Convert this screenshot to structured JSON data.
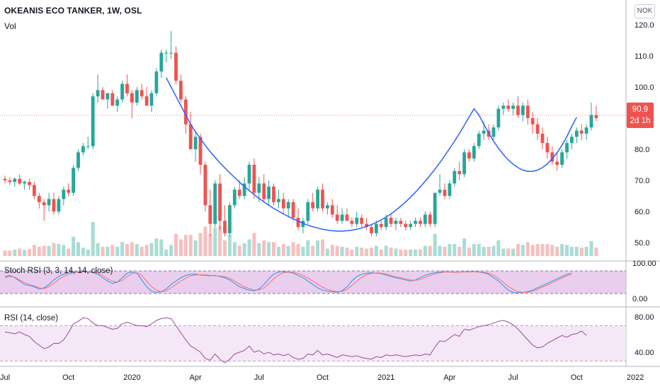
{
  "header": {
    "title": "OKEANIS ECO TANKER, 1W, OSL",
    "volume_label": "Vol",
    "currency": "NOK"
  },
  "last_price": {
    "value": "90.9",
    "countdown": "2d 1h"
  },
  "panes": {
    "stoch_rsi": {
      "title": "Stoch RSI (3, 3, 14, 14, close)",
      "ticks": [
        "100.00",
        "0.00"
      ]
    },
    "rsi": {
      "title": "RSI (14, close)",
      "ticks": [
        "80.00",
        "40.00"
      ]
    }
  },
  "colors": {
    "up": "#26a69a",
    "down": "#ef5350",
    "vol_up": "#a8ddd6",
    "vol_down": "#f7bfbf",
    "cup_line": "#2962ff",
    "stoch_k": "#2196f3",
    "stoch_d": "#ff6d6d",
    "band_fill": "#e1bee7",
    "rsi_line": "#9c4a9c",
    "rsi_band": "#f3e5f5"
  },
  "chart_data": {
    "type": "candlestick",
    "y_axis_ticks": [
      "120.0",
      "110.0",
      "100.0",
      "90.0",
      "80.0",
      "70.0",
      "60.0",
      "50.0"
    ],
    "ylim": [
      45,
      121
    ],
    "x_axis_ticks": [
      "Jul",
      "Oct",
      "2020",
      "Apr",
      "Jul",
      "Oct",
      "2021",
      "Apr",
      "Jul",
      "Oct",
      "2022"
    ],
    "candles_ohlc": [
      [
        70.5,
        71.5,
        69,
        70
      ],
      [
        70,
        71,
        68.5,
        69.5
      ],
      [
        69.5,
        71,
        68,
        70.5
      ],
      [
        70.5,
        72,
        68.5,
        69
      ],
      [
        69,
        70,
        67,
        69.5
      ],
      [
        69.5,
        70.5,
        67,
        68.5
      ],
      [
        68.5,
        69.5,
        64,
        65
      ],
      [
        65,
        66,
        61,
        63
      ],
      [
        63,
        64,
        57,
        62
      ],
      [
        62,
        66,
        60,
        64
      ],
      [
        64,
        66,
        59,
        60
      ],
      [
        60,
        65,
        59,
        64
      ],
      [
        64,
        68,
        62,
        67
      ],
      [
        67,
        69,
        65,
        66
      ],
      [
        66,
        75,
        65,
        74
      ],
      [
        74,
        80,
        73,
        79
      ],
      [
        79,
        82,
        78,
        81
      ],
      [
        81,
        84,
        80,
        81
      ],
      [
        81,
        98,
        80,
        97
      ],
      [
        97,
        104,
        95,
        99
      ],
      [
        99,
        100,
        96,
        96
      ],
      [
        96,
        98,
        93,
        98
      ],
      [
        98,
        99,
        94,
        94
      ],
      [
        94,
        97,
        92,
        96
      ],
      [
        96,
        102,
        95,
        101
      ],
      [
        101,
        104,
        97,
        98
      ],
      [
        98,
        99,
        90,
        95
      ],
      [
        95,
        100,
        94,
        99
      ],
      [
        99,
        101,
        96,
        97
      ],
      [
        97,
        100,
        94,
        94
      ],
      [
        94,
        99,
        92,
        98
      ],
      [
        98,
        106,
        97,
        105
      ],
      [
        105,
        112,
        103,
        111
      ],
      [
        111,
        112,
        108,
        111
      ],
      [
        111,
        118,
        109,
        111
      ],
      [
        111,
        113,
        101,
        102
      ],
      [
        102,
        104,
        95,
        96
      ],
      [
        96,
        97,
        85,
        88
      ],
      [
        88,
        92,
        80,
        80
      ],
      [
        80,
        86,
        76,
        84
      ],
      [
        84,
        85,
        72,
        75
      ],
      [
        75,
        76,
        60,
        62
      ],
      [
        62,
        67,
        52,
        56
      ],
      [
        56,
        70,
        55,
        69
      ],
      [
        69,
        72,
        54,
        57
      ],
      [
        57,
        62,
        52,
        53
      ],
      [
        53,
        63,
        52,
        62
      ],
      [
        62,
        68,
        61,
        67
      ],
      [
        67,
        70,
        64,
        65
      ],
      [
        65,
        71,
        64,
        69
      ],
      [
        69,
        76,
        67,
        75
      ],
      [
        75,
        77,
        64,
        66
      ],
      [
        66,
        71,
        63,
        69
      ],
      [
        69,
        72,
        63,
        64
      ],
      [
        64,
        70,
        62,
        68
      ],
      [
        68,
        69,
        62,
        63
      ],
      [
        63,
        67,
        61,
        64
      ],
      [
        64,
        66,
        59,
        61
      ],
      [
        61,
        64,
        58,
        63
      ],
      [
        63,
        64,
        57,
        58
      ],
      [
        58,
        61,
        54,
        55
      ],
      [
        55,
        58,
        53,
        57
      ],
      [
        57,
        64,
        56,
        63
      ],
      [
        63,
        66,
        60,
        61
      ],
      [
        61,
        68,
        60,
        67
      ],
      [
        67,
        69,
        60,
        61
      ],
      [
        61,
        63,
        59,
        62
      ],
      [
        62,
        64,
        58,
        59
      ],
      [
        59,
        62,
        56,
        57
      ],
      [
        57,
        61,
        56,
        59
      ],
      [
        59,
        61,
        57,
        57
      ],
      [
        57,
        58,
        55,
        56
      ],
      [
        56,
        60,
        55,
        58
      ],
      [
        58,
        59,
        55,
        56
      ],
      [
        56,
        58,
        54,
        55
      ],
      [
        55,
        56,
        52,
        53
      ],
      [
        53,
        57,
        52,
        56
      ],
      [
        56,
        57,
        54,
        55
      ],
      [
        55,
        59,
        54,
        58
      ],
      [
        58,
        59,
        55,
        56
      ],
      [
        56,
        58,
        54,
        57
      ],
      [
        57,
        58,
        55,
        56
      ],
      [
        56,
        57,
        54,
        55
      ],
      [
        55,
        57,
        54,
        56
      ],
      [
        56,
        58,
        55,
        57
      ],
      [
        57,
        58,
        55,
        56
      ],
      [
        56,
        60,
        55,
        59
      ],
      [
        59,
        60,
        55,
        56
      ],
      [
        56,
        66,
        55,
        66
      ],
      [
        66,
        72,
        65,
        67
      ],
      [
        67,
        69,
        64,
        65
      ],
      [
        65,
        70,
        64,
        69
      ],
      [
        69,
        74,
        68,
        73
      ],
      [
        73,
        76,
        70,
        72
      ],
      [
        72,
        80,
        71,
        79
      ],
      [
        79,
        80,
        76,
        77
      ],
      [
        77,
        82,
        76,
        81
      ],
      [
        81,
        86,
        80,
        85
      ],
      [
        85,
        89,
        83,
        86
      ],
      [
        86,
        88,
        83,
        84
      ],
      [
        84,
        88,
        83,
        87
      ],
      [
        87,
        94,
        86,
        93
      ],
      [
        93,
        95,
        91,
        94
      ],
      [
        94,
        96,
        92,
        93
      ],
      [
        93,
        95,
        91,
        94
      ],
      [
        94,
        97,
        90,
        91
      ],
      [
        91,
        95,
        89,
        94
      ],
      [
        94,
        96,
        88,
        90
      ],
      [
        90,
        92,
        85,
        88
      ],
      [
        88,
        90,
        83,
        85
      ],
      [
        85,
        87,
        80,
        82
      ],
      [
        82,
        84,
        77,
        79
      ],
      [
        79,
        81,
        75,
        76
      ],
      [
        76,
        79,
        73,
        75
      ],
      [
        75,
        80,
        74,
        79
      ],
      [
        79,
        83,
        77,
        82
      ],
      [
        82,
        85,
        80,
        84
      ],
      [
        84,
        87,
        82,
        86
      ],
      [
        86,
        88,
        83,
        85
      ],
      [
        85,
        88,
        83,
        87
      ],
      [
        87,
        95,
        86,
        91
      ],
      [
        91,
        94,
        89,
        90
      ]
    ],
    "cup_handle_curve": [
      [
        33,
        103
      ],
      [
        34,
        100
      ],
      [
        35,
        97
      ],
      [
        36,
        94
      ],
      [
        37,
        91
      ],
      [
        38,
        88
      ],
      [
        39,
        85.6
      ],
      [
        40,
        83.4
      ],
      [
        41,
        81.2
      ],
      [
        42,
        79.2
      ],
      [
        43,
        77.4
      ],
      [
        44,
        75.6
      ],
      [
        45,
        74
      ],
      [
        46,
        72.4
      ],
      [
        47,
        70.9
      ],
      [
        48,
        69.4
      ],
      [
        49,
        68
      ],
      [
        50,
        66.7
      ],
      [
        51,
        65.4
      ],
      [
        52,
        64.2
      ],
      [
        53,
        63.1
      ],
      [
        54,
        62
      ],
      [
        55,
        61
      ],
      [
        56,
        60.1
      ],
      [
        57,
        59.2
      ],
      [
        58,
        58.4
      ],
      [
        59,
        57.6
      ],
      [
        60,
        56.9
      ],
      [
        61,
        56.2
      ],
      [
        62,
        55.6
      ],
      [
        63,
        55.1
      ],
      [
        64,
        54.7
      ],
      [
        65,
        54.3
      ],
      [
        66,
        54
      ],
      [
        67,
        53.8
      ],
      [
        68,
        53.7
      ],
      [
        69,
        53.7
      ],
      [
        70,
        53.8
      ],
      [
        71,
        54
      ],
      [
        72,
        54.3
      ],
      [
        73,
        54.7
      ],
      [
        74,
        55.2
      ],
      [
        75,
        55.8
      ],
      [
        76,
        56.5
      ],
      [
        77,
        57.3
      ],
      [
        78,
        58.2
      ],
      [
        79,
        59.2
      ],
      [
        80,
        60.4
      ],
      [
        81,
        61.7
      ],
      [
        82,
        63.1
      ],
      [
        83,
        64.6
      ],
      [
        84,
        66.2
      ],
      [
        85,
        67.9
      ],
      [
        86,
        69.7
      ],
      [
        87,
        71.6
      ],
      [
        88,
        73.6
      ],
      [
        89,
        75.7
      ],
      [
        90,
        77.9
      ],
      [
        91,
        80.2
      ],
      [
        92,
        82.6
      ],
      [
        93,
        85.1
      ],
      [
        94,
        87.7
      ],
      [
        95,
        90.4
      ],
      [
        96,
        93
      ],
      [
        97,
        91
      ],
      [
        98,
        88
      ],
      [
        99,
        85.2
      ],
      [
        100,
        82.6
      ],
      [
        101,
        80.3
      ],
      [
        102,
        78.3
      ],
      [
        103,
        76.6
      ],
      [
        104,
        75.2
      ],
      [
        105,
        74.1
      ],
      [
        106,
        73.3
      ],
      [
        107,
        72.9
      ],
      [
        108,
        72.9
      ],
      [
        109,
        73.3
      ],
      [
        110,
        74.1
      ],
      [
        111,
        75.3
      ],
      [
        112,
        76.9
      ],
      [
        113,
        78.9
      ],
      [
        114,
        81.3
      ],
      [
        115,
        84.1
      ],
      [
        116,
        87.3
      ],
      [
        117,
        90.3
      ]
    ],
    "stoch_rsi": {
      "k": [
        75,
        80,
        70,
        55,
        40,
        35,
        30,
        20,
        25,
        40,
        60,
        75,
        85,
        92,
        95,
        96,
        97,
        95,
        93,
        85,
        70,
        55,
        45,
        50,
        70,
        90,
        95,
        90,
        60,
        30,
        10,
        5,
        8,
        20,
        40,
        55,
        70,
        80,
        85,
        85,
        82,
        80,
        78,
        80,
        75,
        70,
        60,
        45,
        30,
        22,
        15,
        12,
        20,
        40,
        65,
        85,
        95,
        97,
        95,
        90,
        80,
        70,
        55,
        40,
        25,
        15,
        10,
        8,
        5,
        12,
        30,
        55,
        75,
        85,
        90,
        92,
        90,
        88,
        82,
        75,
        70,
        65,
        60,
        55,
        60,
        70,
        80,
        88,
        92,
        95,
        96,
        95,
        94,
        95,
        96,
        96,
        97,
        95,
        92,
        85,
        70,
        55,
        35,
        15,
        5,
        3,
        5,
        8,
        15,
        25,
        35,
        45,
        55,
        65,
        75,
        85,
        90
      ],
      "d": [
        70,
        75,
        72,
        60,
        48,
        40,
        33,
        25,
        22,
        30,
        45,
        62,
        75,
        85,
        92,
        95,
        96,
        96,
        95,
        90,
        80,
        65,
        55,
        50,
        58,
        75,
        88,
        92,
        80,
        55,
        30,
        15,
        8,
        12,
        25,
        40,
        55,
        68,
        78,
        82,
        83,
        82,
        80,
        78,
        77,
        74,
        67,
        55,
        42,
        30,
        22,
        16,
        16,
        25,
        45,
        65,
        82,
        92,
        95,
        94,
        88,
        80,
        68,
        55,
        40,
        28,
        18,
        12,
        8,
        9,
        18,
        35,
        55,
        72,
        83,
        89,
        91,
        90,
        86,
        80,
        74,
        69,
        64,
        60,
        58,
        62,
        70,
        80,
        87,
        92,
        95,
        95,
        95,
        95,
        95,
        96,
        96,
        96,
        94,
        90,
        80,
        66,
        50,
        32,
        18,
        8,
        5,
        6,
        10,
        18,
        28,
        38,
        48,
        58,
        68,
        78,
        85
      ]
    },
    "rsi": [
      63,
      62,
      61,
      63,
      60,
      58,
      52,
      48,
      44,
      46,
      50,
      50,
      54,
      62,
      72,
      75,
      79,
      78,
      73,
      70,
      70,
      68,
      66,
      67,
      72,
      74,
      72,
      70,
      70,
      69,
      72,
      76,
      78,
      79,
      78,
      70,
      62,
      54,
      47,
      44,
      40,
      33,
      31,
      38,
      32,
      28,
      32,
      38,
      40,
      42,
      47,
      40,
      42,
      38,
      40,
      37,
      38,
      36,
      38,
      34,
      32,
      33,
      38,
      37,
      42,
      37,
      38,
      36,
      34,
      37,
      36,
      35,
      36,
      34,
      33,
      32,
      35,
      34,
      37,
      36,
      37,
      36,
      35,
      36,
      37,
      36,
      38,
      37,
      46,
      53,
      52,
      56,
      60,
      58,
      66,
      65,
      67,
      69,
      70,
      71,
      73,
      75,
      76,
      74,
      71,
      66,
      60,
      54,
      48,
      45,
      46,
      50,
      53,
      56,
      59,
      57,
      60,
      61,
      64,
      59
    ]
  }
}
